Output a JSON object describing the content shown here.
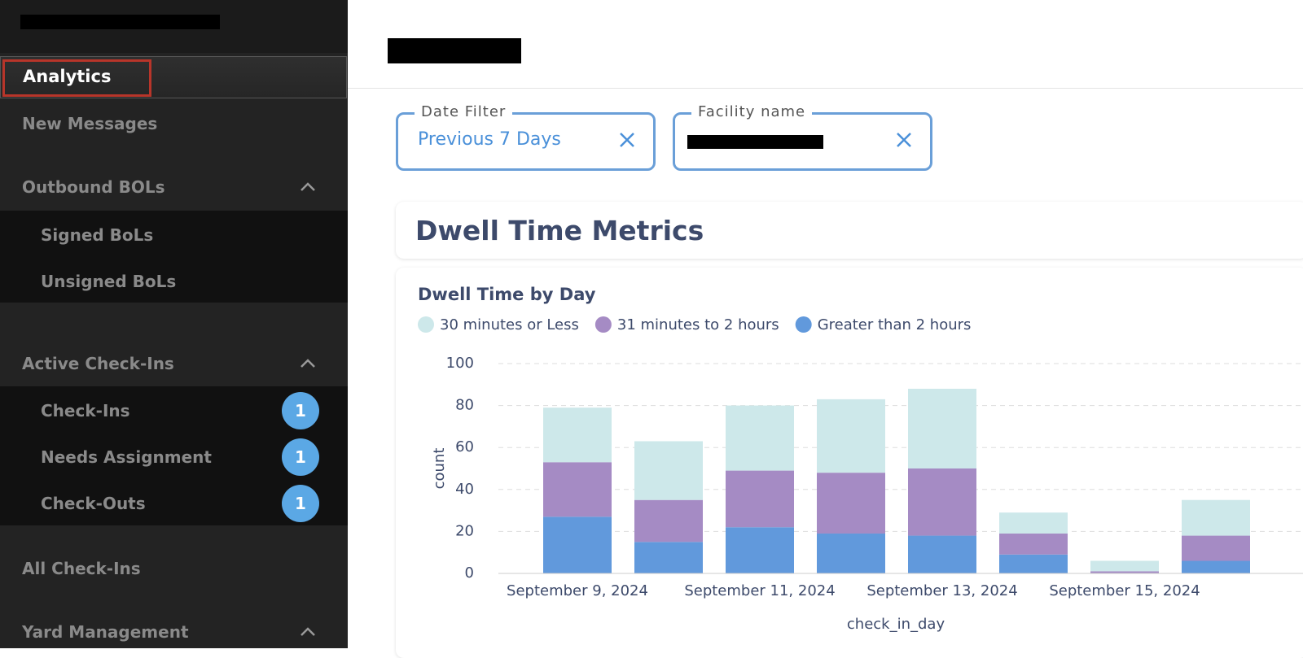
{
  "sidebar": {
    "active": "Analytics",
    "items": [
      {
        "label": "New Messages"
      },
      {
        "label": "Outbound BOLs",
        "children": [
          {
            "label": "Signed BoLs"
          },
          {
            "label": "Unsigned BoLs"
          }
        ]
      },
      {
        "label": "Active Check-Ins",
        "children": [
          {
            "label": "Check-Ins",
            "badge": 1
          },
          {
            "label": "Needs Assignment",
            "badge": 1
          },
          {
            "label": "Check-Outs",
            "badge": 1
          }
        ]
      },
      {
        "label": "All Check-Ins"
      },
      {
        "label": "Yard Management"
      }
    ]
  },
  "filters": [
    {
      "label": "Date Filter",
      "value": "Previous 7 Days"
    },
    {
      "label": "Facility name"
    }
  ],
  "section": {
    "title": "Dwell Time Metrics"
  },
  "chart_data": {
    "type": "bar",
    "stacked": true,
    "title": "Dwell Time by Day",
    "x_label": "check_in_day",
    "y_label": "count",
    "categories": [
      "September 9, 2024",
      null,
      "September 11, 2024",
      null,
      "September 13, 2024",
      null,
      "September 15, 2024",
      null
    ],
    "series": [
      {
        "name": "30 minutes or Less",
        "color": "#cde8ea",
        "values": [
          26,
          28,
          31,
          35,
          38,
          10,
          5,
          17
        ]
      },
      {
        "name": "31 minutes to 2 hours",
        "color": "#a58bc4",
        "values": [
          26,
          20,
          27,
          29,
          32,
          10,
          1,
          12
        ]
      },
      {
        "name": "Greater than 2 hours",
        "color": "#6199dc",
        "values": [
          27,
          15,
          22,
          19,
          18,
          9,
          0,
          6
        ]
      }
    ],
    "ylim": [
      0,
      100
    ],
    "yticks": [
      0,
      20,
      40,
      60,
      80,
      100
    ],
    "grid": true
  }
}
